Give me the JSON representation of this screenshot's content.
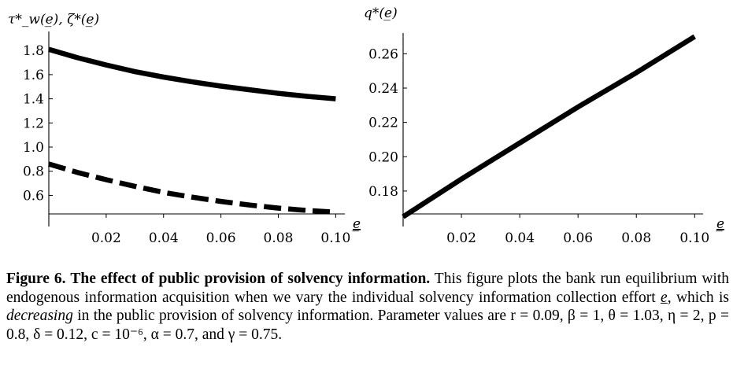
{
  "chart_data": [
    {
      "type": "line",
      "ylabel": "τ*_w(e̲), ζ*(e̲)",
      "xlabel": "e̲",
      "xlim": [
        0.0,
        0.101
      ],
      "ylim": [
        0.44,
        1.86
      ],
      "x_ticks": [
        "0.02",
        "0.04",
        "0.06",
        "0.08",
        "0.10"
      ],
      "y_ticks": [
        "0.6",
        "0.8",
        "1.0",
        "1.2",
        "1.4",
        "1.6",
        "1.8"
      ],
      "grid": false,
      "series": [
        {
          "style": "solid",
          "color": "#000000",
          "x": [
            0.0,
            0.01,
            0.02,
            0.03,
            0.04,
            0.05,
            0.06,
            0.07,
            0.08,
            0.09,
            0.1
          ],
          "y": [
            1.81,
            1.74,
            1.68,
            1.625,
            1.58,
            1.54,
            1.505,
            1.475,
            1.445,
            1.42,
            1.4
          ]
        },
        {
          "style": "dashed",
          "color": "#000000",
          "x": [
            0.0,
            0.01,
            0.02,
            0.03,
            0.04,
            0.05,
            0.06,
            0.07,
            0.08,
            0.09,
            0.1
          ],
          "y": [
            0.86,
            0.79,
            0.73,
            0.675,
            0.625,
            0.585,
            0.55,
            0.52,
            0.495,
            0.475,
            0.46
          ]
        }
      ]
    },
    {
      "type": "line",
      "ylabel": "q*(e̲)",
      "xlabel": "e̲",
      "xlim": [
        0.0,
        0.101
      ],
      "ylim": [
        0.163,
        0.273
      ],
      "x_ticks": [
        "0.02",
        "0.04",
        "0.06",
        "0.08",
        "0.10"
      ],
      "y_ticks": [
        "0.18",
        "0.20",
        "0.22",
        "0.24",
        "0.26"
      ],
      "grid": false,
      "series": [
        {
          "style": "solid",
          "color": "#000000",
          "x": [
            0.0,
            0.02,
            0.04,
            0.06,
            0.08,
            0.1
          ],
          "y": [
            0.165,
            0.187,
            0.208,
            0.229,
            0.249,
            0.27
          ]
        }
      ]
    }
  ],
  "caption": {
    "label": "Figure 6.",
    "title": "The effect of public provision of solvency information.",
    "text_1": "This figure plots the bank run equilibrium with endogenous information acquisition when we vary the individual solvency information collection effort ",
    "effort_symbol": "e",
    "text_2": ", which is ",
    "emphasis": "decreasing",
    "text_3": " in the public provision of solvency information. Parameter values are ",
    "parameters": "r = 0.09, β = 1, θ = 1.03, η = 2, p = 0.8, δ = 0.12, c = 10⁻⁶, α = 0.7, and γ = 0.75."
  }
}
